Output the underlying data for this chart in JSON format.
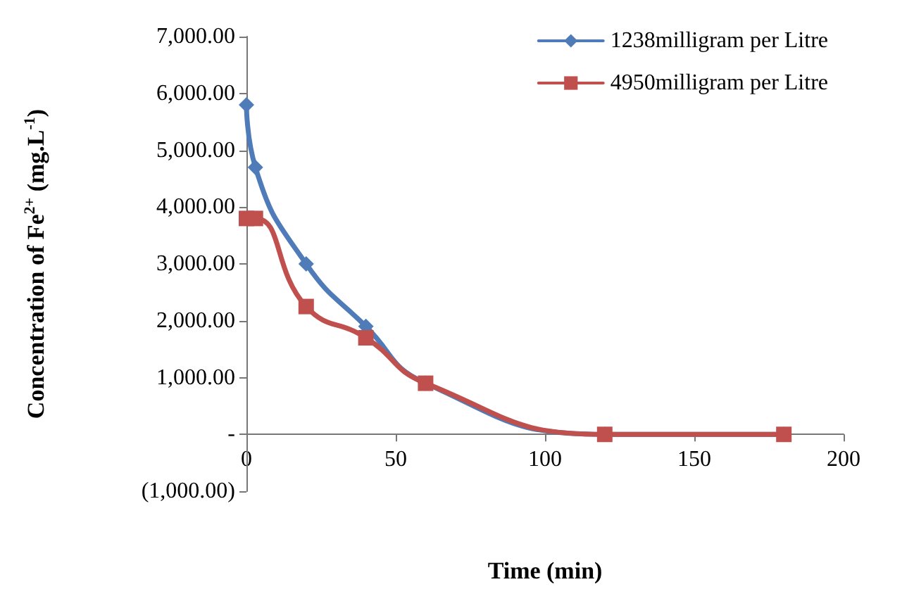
{
  "chart_data": {
    "type": "line",
    "xlabel": "Time (min)",
    "ylabel": "Concentration of Fe$^{2+}$ (mg.L$^{-1}$)",
    "xlim": [
      0,
      200
    ],
    "xticks": [
      0,
      50,
      100,
      150,
      200
    ],
    "ylim": [
      -1000,
      7000
    ],
    "yticks": [
      {
        "value": -1000,
        "label": "(1,000.00)"
      },
      {
        "value": 0,
        "label": "-"
      },
      {
        "value": 1000,
        "label": "1,000.00"
      },
      {
        "value": 2000,
        "label": "2,000.00"
      },
      {
        "value": 3000,
        "label": "3,000.00"
      },
      {
        "value": 4000,
        "label": "4,000.00"
      },
      {
        "value": 5000,
        "label": "5,000.00"
      },
      {
        "value": 6000,
        "label": "6,000.00"
      },
      {
        "value": 7000,
        "label": "7,000.00"
      }
    ],
    "grid": false,
    "legend": "top right",
    "x": [
      0,
      3,
      20,
      40,
      60,
      120,
      180
    ],
    "series": [
      {
        "name": "1238milligram per Litre",
        "color": "#4f7cb8",
        "marker": "diamond",
        "values": [
          5800,
          4700,
          3000,
          1900,
          900,
          0,
          0
        ]
      },
      {
        "name": "4950milligram per Litre",
        "color": "#c0504d",
        "marker": "square",
        "values": [
          3800,
          3800,
          2250,
          1700,
          900,
          0,
          0
        ]
      }
    ]
  }
}
